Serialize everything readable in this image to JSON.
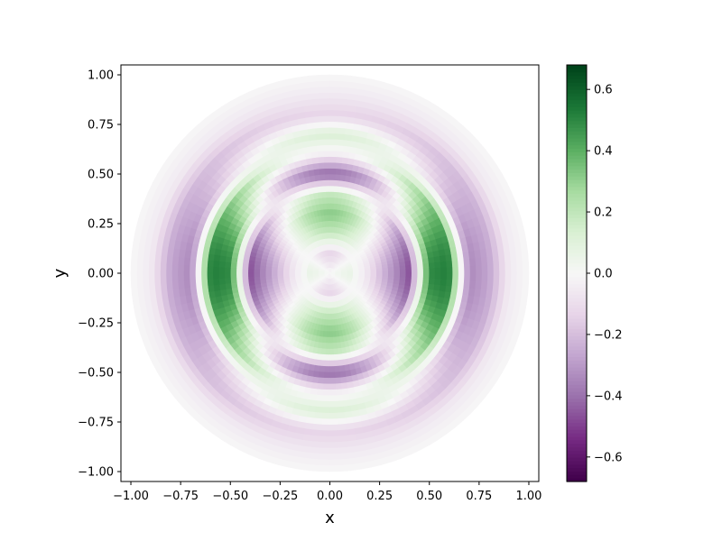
{
  "chart_data": {
    "type": "heatmap",
    "title": "",
    "xlabel": "x",
    "ylabel": "y",
    "xlim": [
      -1.05,
      1.05
    ],
    "ylim": [
      -1.05,
      1.05
    ],
    "x_ticks": [
      -1.0,
      -0.75,
      -0.5,
      -0.25,
      0.0,
      0.25,
      0.5,
      0.75,
      1.0
    ],
    "y_ticks": [
      -1.0,
      -0.75,
      -0.5,
      -0.25,
      0.0,
      0.25,
      0.5,
      0.75,
      1.0
    ],
    "x_tick_labels": [
      "−1.00",
      "−0.75",
      "−0.50",
      "−0.25",
      "0.00",
      "0.25",
      "0.50",
      "0.75",
      "1.00"
    ],
    "y_tick_labels": [
      "−1.00",
      "−0.75",
      "−0.50",
      "−0.25",
      "0.00",
      "0.25",
      "0.50",
      "0.75",
      "1.00"
    ],
    "domain": "unit disk (radius 1)",
    "field": "mode u(r, θ) = 0.68 · (a(r) + b(r)·cos 2θ)",
    "radial_profile_a": {
      "r": [
        0.0,
        0.1,
        0.2,
        0.3,
        0.4,
        0.5,
        0.6,
        0.7,
        0.8,
        0.9,
        1.0
      ],
      "value": [
        0.0,
        -0.05,
        0.07,
        0.03,
        -0.2,
        0.04,
        0.36,
        -0.16,
        -0.3,
        -0.08,
        0.0
      ]
    },
    "radial_profile_b": {
      "r": [
        0.0,
        0.1,
        0.2,
        0.3,
        0.4,
        0.5,
        0.6,
        0.7,
        0.8,
        0.9,
        1.0
      ],
      "value": [
        0.0,
        0.14,
        -0.2,
        -0.45,
        -0.48,
        0.69,
        0.42,
        -0.35,
        -0.1,
        0.0,
        0.0
      ]
    },
    "colormap": "PRGn",
    "colormap_stops": [
      "#40004b",
      "#762a83",
      "#9970ab",
      "#c2a5cf",
      "#e7d4e8",
      "#f7f7f7",
      "#d9f0d3",
      "#a6dba0",
      "#5aae61",
      "#1b7837",
      "#00441b"
    ],
    "colorbar": {
      "vmin": -0.68,
      "vmax": 0.68,
      "ticks": [
        -0.6,
        -0.4,
        -0.2,
        0.0,
        0.2,
        0.4,
        0.6
      ],
      "tick_labels": [
        "−0.6",
        "−0.4",
        "−0.2",
        "0.0",
        "0.2",
        "0.4",
        "0.6"
      ]
    },
    "grid": false
  }
}
